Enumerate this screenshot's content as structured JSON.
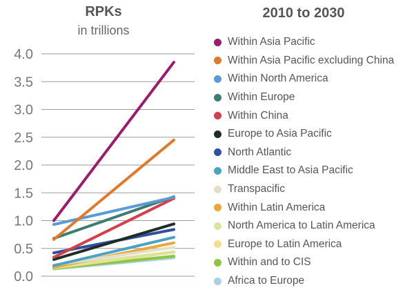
{
  "chart_data": {
    "type": "line",
    "title": "2010 to 2030",
    "ylabel": "RPKs",
    "ylabel_sub": "in trillions",
    "ylim": [
      0,
      4.0
    ],
    "yticks": [
      "0.0",
      "0.5",
      "1.0",
      "1.5",
      "2.0",
      "2.5",
      "3.0",
      "3.5",
      "4.0"
    ],
    "grid": true,
    "legend_position": "right",
    "series": [
      {
        "name": "Within Asia Pacific",
        "color": "#9b1b6e",
        "values": [
          1.0,
          3.85
        ]
      },
      {
        "name": "Within Asia Pacific excluding China",
        "color": "#e07a2a",
        "values": [
          0.66,
          2.45
        ]
      },
      {
        "name": "Within North America",
        "color": "#5b9bd5",
        "values": [
          0.93,
          1.42
        ]
      },
      {
        "name": "Within Europe",
        "color": "#3e7b73",
        "values": [
          0.68,
          1.43
        ]
      },
      {
        "name": "Within China",
        "color": "#d63f49",
        "values": [
          0.34,
          1.4
        ]
      },
      {
        "name": "Europe to Asia Pacific",
        "color": "#1c2e24",
        "values": [
          0.3,
          0.94
        ]
      },
      {
        "name": "North Atlantic",
        "color": "#2f4fa2",
        "values": [
          0.42,
          0.84
        ]
      },
      {
        "name": "Middle East to Asia Pacific",
        "color": "#4aa3c2",
        "values": [
          0.19,
          0.7
        ]
      },
      {
        "name": "Transpacific",
        "color": "#e5dfc9",
        "values": [
          0.2,
          0.52
        ]
      },
      {
        "name": "Within Latin America",
        "color": "#e9a93a",
        "values": [
          0.16,
          0.6
        ]
      },
      {
        "name": "North America to Latin America",
        "color": "#d9e59c",
        "values": [
          0.17,
          0.44
        ]
      },
      {
        "name": "Europe to Latin America",
        "color": "#f3dd8a",
        "values": [
          0.15,
          0.43
        ]
      },
      {
        "name": "Within and to CIS",
        "color": "#8cc63e",
        "values": [
          0.14,
          0.36
        ]
      },
      {
        "name": "Africa to Europe",
        "color": "#a9cfe8",
        "values": [
          0.13,
          0.33
        ]
      }
    ]
  }
}
